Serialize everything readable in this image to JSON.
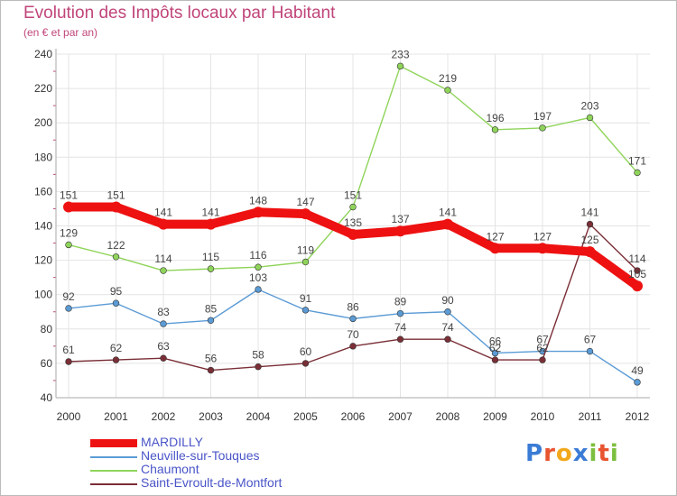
{
  "title": "Evolution des Impôts locaux par Habitant",
  "subtitle": "(en € et par an)",
  "logo": {
    "text": "Proxiti",
    "letters": [
      "P",
      "r",
      "o",
      "x",
      "i",
      "t",
      "i"
    ],
    "colors": [
      "#3a7bd5",
      "#e8542f",
      "#f2a81d",
      "#3a7bd5",
      "#7cbf3f",
      "#e8542f",
      "#7cbf3f"
    ]
  },
  "chart_data": {
    "type": "line",
    "title": "Evolution des Impôts locaux par Habitant",
    "subtitle": "(en € et par an)",
    "xlabel": "",
    "ylabel": "",
    "ylim": [
      40,
      240
    ],
    "yticks": [
      40,
      60,
      80,
      100,
      120,
      140,
      160,
      180,
      200,
      220,
      240
    ],
    "x": [
      "2000",
      "2001",
      "2002",
      "2003",
      "2004",
      "2005",
      "2006",
      "2007",
      "2008",
      "2009",
      "2010",
      "2011",
      "2012"
    ],
    "grid": true,
    "legend_position": "bottom-left",
    "series": [
      {
        "name": "MARDILLY",
        "color": "#ee1111",
        "thick": true,
        "values": [
          151,
          151,
          141,
          141,
          148,
          147,
          135,
          137,
          141,
          127,
          127,
          125,
          105
        ],
        "labels": [
          "151",
          "151",
          "141",
          "141",
          "148",
          "147",
          "135",
          "137",
          "141",
          "127",
          "127",
          "125",
          "105"
        ]
      },
      {
        "name": "Neuville-sur-Touques",
        "color": "#5b9bd5",
        "thick": false,
        "values": [
          92,
          95,
          83,
          85,
          103,
          91,
          86,
          89,
          90,
          66,
          67,
          67,
          49
        ],
        "labels": [
          "92",
          "95",
          "83",
          "85",
          "103",
          "91",
          "86",
          "89",
          "90",
          "66",
          "67",
          "67",
          "49"
        ]
      },
      {
        "name": "Chaumont",
        "color": "#8fd45a",
        "thick": false,
        "values": [
          129,
          122,
          114,
          115,
          116,
          119,
          151,
          233,
          219,
          196,
          197,
          203,
          171
        ],
        "labels": [
          "129",
          "122",
          "114",
          "115",
          "116",
          "119",
          "151",
          "233",
          "219",
          "196",
          "197",
          "203",
          "171"
        ]
      },
      {
        "name": "Saint-Evroult-de-Montfort",
        "color": "#7a2e36",
        "thick": false,
        "values": [
          61,
          62,
          63,
          56,
          58,
          60,
          70,
          74,
          74,
          62,
          62,
          141,
          114
        ],
        "labels": [
          "61",
          "62",
          "63",
          "56",
          "58",
          "60",
          "70",
          "74",
          "74",
          "62",
          "62",
          "141",
          "114"
        ]
      }
    ]
  }
}
